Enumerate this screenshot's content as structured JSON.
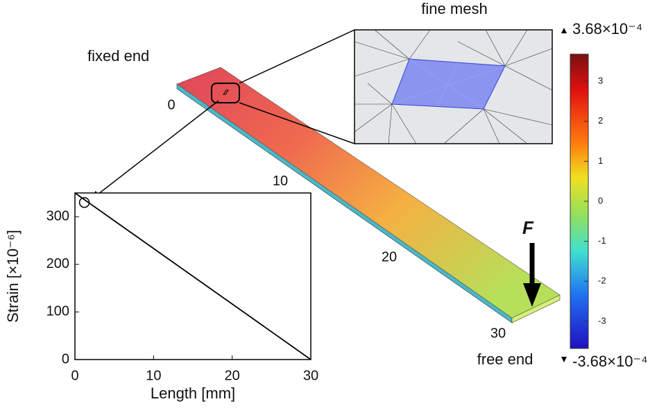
{
  "chart_data": {
    "type": "line",
    "xlabel": "Length [mm]",
    "ylabel": "Strain [×10⁻⁶]",
    "x": [
      0,
      30
    ],
    "series": [
      {
        "name": null,
        "color": "#000000",
        "values": [
          350,
          0
        ]
      }
    ],
    "xlim": [
      0,
      30
    ],
    "ylim": [
      0,
      350
    ],
    "xticks": [
      0,
      10,
      20,
      30
    ],
    "yticks": [
      0,
      100,
      200,
      300
    ],
    "marker": {
      "x": 1.2,
      "y": 330
    }
  },
  "figure": {
    "fixed_label": "fixed end",
    "free_label": "free end",
    "inset_title": "fine mesh",
    "force_label": "F",
    "beam_ticks": [
      0,
      10,
      20,
      30
    ]
  },
  "colorbar": {
    "max_label": "3.68×10⁻⁴",
    "min_label": "-3.68×10⁻⁴",
    "lim": [
      -3.68,
      3.68
    ],
    "ticks": [
      3,
      2,
      1,
      0,
      -1,
      -2,
      -3
    ]
  }
}
